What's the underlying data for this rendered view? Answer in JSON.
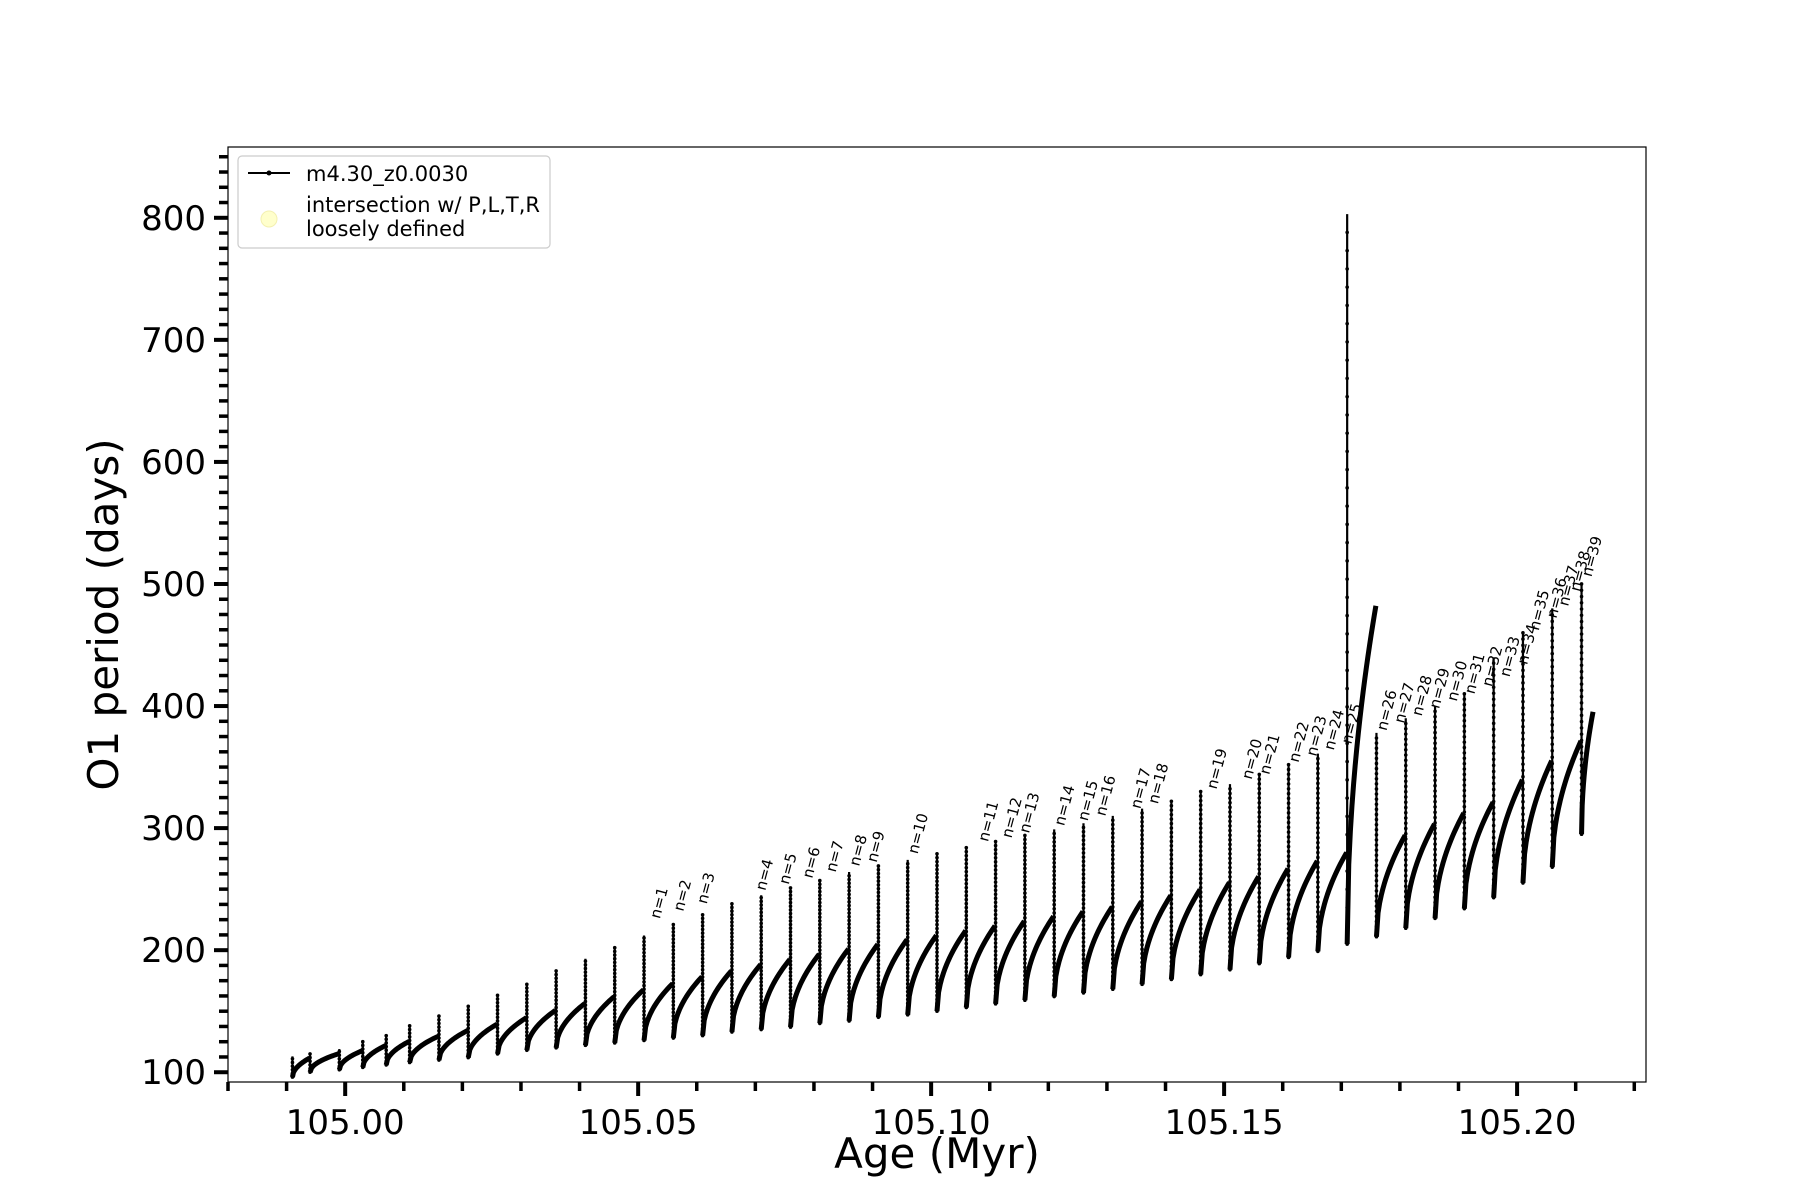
{
  "chart_data": {
    "type": "line",
    "xlabel": "Age (Myr)",
    "ylabel": "O1 period (days)",
    "xlim": [
      104.98,
      105.222
    ],
    "ylim": [
      92,
      858
    ],
    "x_ticks": [
      105.0,
      105.05,
      105.1,
      105.15,
      105.2
    ],
    "x_tick_labels": [
      "105.00",
      "105.05",
      "105.10",
      "105.15",
      "105.20"
    ],
    "y_ticks": [
      100,
      200,
      300,
      400,
      500,
      600,
      700,
      800
    ],
    "y_tick_labels": [
      "100",
      "200",
      "300",
      "400",
      "500",
      "600",
      "700",
      "800"
    ],
    "legend": {
      "placement": "upper left",
      "entries": [
        {
          "label": "m4.30_z0.0030",
          "marker": "line-dot",
          "color": "#000000"
        },
        {
          "label_lines": [
            "intersection w/ P,L,T,R",
            "loosely defined"
          ],
          "marker": "circle",
          "color": "#ffffcc"
        }
      ]
    },
    "series": [
      {
        "name": "m4.30_z0.0030",
        "color": "#000000",
        "description_of_shape": "repeating thermal-pulse loops; each loop drops to a minimum then recovers along a curved branch",
        "pulses": [
          {
            "x": 104.991,
            "peak": 113,
            "low": 96
          },
          {
            "x": 104.994,
            "peak": 116,
            "low": 100
          },
          {
            "x": 104.999,
            "peak": 119,
            "low": 102
          },
          {
            "x": 105.003,
            "peak": 126,
            "low": 104
          },
          {
            "x": 105.007,
            "peak": 131,
            "low": 106
          },
          {
            "x": 105.011,
            "peak": 138,
            "low": 108
          },
          {
            "x": 105.016,
            "peak": 146,
            "low": 110
          },
          {
            "x": 105.021,
            "peak": 155,
            "low": 112
          },
          {
            "x": 105.026,
            "peak": 163,
            "low": 115
          },
          {
            "x": 105.031,
            "peak": 173,
            "low": 118
          },
          {
            "x": 105.036,
            "peak": 183,
            "low": 120
          },
          {
            "x": 105.041,
            "peak": 193,
            "low": 122
          },
          {
            "x": 105.046,
            "peak": 203,
            "low": 124
          },
          {
            "x": 105.051,
            "peak": 212,
            "low": 126
          },
          {
            "x": 105.056,
            "peak": 222,
            "low": 128
          },
          {
            "x": 105.061,
            "peak": 230,
            "low": 130
          },
          {
            "x": 105.066,
            "peak": 238,
            "low": 133
          },
          {
            "x": 105.071,
            "peak": 245,
            "low": 135
          },
          {
            "x": 105.076,
            "peak": 252,
            "low": 137
          },
          {
            "x": 105.081,
            "peak": 258,
            "low": 140
          },
          {
            "x": 105.086,
            "peak": 264,
            "low": 142
          },
          {
            "x": 105.091,
            "peak": 269,
            "low": 145
          },
          {
            "x": 105.096,
            "peak": 274,
            "low": 147
          },
          {
            "x": 105.101,
            "peak": 279,
            "low": 150
          },
          {
            "x": 105.106,
            "peak": 284,
            "low": 153
          },
          {
            "x": 105.111,
            "peak": 289,
            "low": 156
          },
          {
            "x": 105.116,
            "peak": 294,
            "low": 159
          },
          {
            "x": 105.121,
            "peak": 299,
            "low": 162
          },
          {
            "x": 105.126,
            "peak": 304,
            "low": 165
          },
          {
            "x": 105.131,
            "peak": 310,
            "low": 168
          },
          {
            "x": 105.136,
            "peak": 316,
            "low": 172
          },
          {
            "x": 105.141,
            "peak": 322,
            "low": 176
          },
          {
            "x": 105.146,
            "peak": 330,
            "low": 180
          },
          {
            "x": 105.151,
            "peak": 336,
            "low": 184
          },
          {
            "x": 105.156,
            "peak": 344,
            "low": 189
          },
          {
            "x": 105.161,
            "peak": 352,
            "low": 194
          },
          {
            "x": 105.166,
            "peak": 361,
            "low": 199
          },
          {
            "x": 105.171,
            "peak": 803,
            "low": 205
          },
          {
            "x": 105.176,
            "peak": 378,
            "low": 211
          },
          {
            "x": 105.181,
            "peak": 390,
            "low": 218
          },
          {
            "x": 105.186,
            "peak": 400,
            "low": 226
          },
          {
            "x": 105.191,
            "peak": 410,
            "low": 234
          },
          {
            "x": 105.196,
            "peak": 440,
            "low": 243
          },
          {
            "x": 105.201,
            "peak": 460,
            "low": 255
          },
          {
            "x": 105.206,
            "peak": 480,
            "low": 268
          },
          {
            "x": 105.211,
            "peak": 500,
            "low": 295
          }
        ]
      }
    ],
    "annotations": [
      {
        "text": "n=1",
        "x": 105.053,
        "y": 222
      },
      {
        "text": "n=2",
        "x": 105.057,
        "y": 228
      },
      {
        "text": "n=3",
        "x": 105.061,
        "y": 234
      },
      {
        "text": "n=4",
        "x": 105.071,
        "y": 245
      },
      {
        "text": "n=5",
        "x": 105.075,
        "y": 250
      },
      {
        "text": "n=6",
        "x": 105.079,
        "y": 255
      },
      {
        "text": "n=7",
        "x": 105.083,
        "y": 260
      },
      {
        "text": "n=8",
        "x": 105.087,
        "y": 265
      },
      {
        "text": "n=9",
        "x": 105.09,
        "y": 268
      },
      {
        "text": "n=10",
        "x": 105.097,
        "y": 275
      },
      {
        "text": "n=11",
        "x": 105.109,
        "y": 285
      },
      {
        "text": "n=12",
        "x": 105.113,
        "y": 288
      },
      {
        "text": "n=13",
        "x": 105.116,
        "y": 292
      },
      {
        "text": "n=14",
        "x": 105.122,
        "y": 298
      },
      {
        "text": "n=15",
        "x": 105.126,
        "y": 302
      },
      {
        "text": "n=16",
        "x": 105.129,
        "y": 306
      },
      {
        "text": "n=17",
        "x": 105.135,
        "y": 312
      },
      {
        "text": "n=18",
        "x": 105.138,
        "y": 316
      },
      {
        "text": "n=19",
        "x": 105.148,
        "y": 328
      },
      {
        "text": "n=20",
        "x": 105.154,
        "y": 336
      },
      {
        "text": "n=21",
        "x": 105.157,
        "y": 340
      },
      {
        "text": "n=22",
        "x": 105.162,
        "y": 350
      },
      {
        "text": "n=23",
        "x": 105.165,
        "y": 355
      },
      {
        "text": "n=24",
        "x": 105.168,
        "y": 360
      },
      {
        "text": "n=25",
        "x": 105.171,
        "y": 365
      },
      {
        "text": "n=26",
        "x": 105.177,
        "y": 376
      },
      {
        "text": "n=27",
        "x": 105.18,
        "y": 382
      },
      {
        "text": "n=28",
        "x": 105.183,
        "y": 388
      },
      {
        "text": "n=29",
        "x": 105.186,
        "y": 394
      },
      {
        "text": "n=30",
        "x": 105.189,
        "y": 400
      },
      {
        "text": "n=31",
        "x": 105.192,
        "y": 406
      },
      {
        "text": "n=32",
        "x": 105.195,
        "y": 412
      },
      {
        "text": "n=33",
        "x": 105.198,
        "y": 420
      },
      {
        "text": "n=34",
        "x": 105.201,
        "y": 430
      },
      {
        "text": "n=35",
        "x": 105.203,
        "y": 458
      },
      {
        "text": "n=36",
        "x": 105.206,
        "y": 468
      },
      {
        "text": "n=37",
        "x": 105.208,
        "y": 478
      },
      {
        "text": "n=38",
        "x": 105.21,
        "y": 490
      },
      {
        "text": "n=39",
        "x": 105.212,
        "y": 502
      }
    ],
    "grid": false
  }
}
